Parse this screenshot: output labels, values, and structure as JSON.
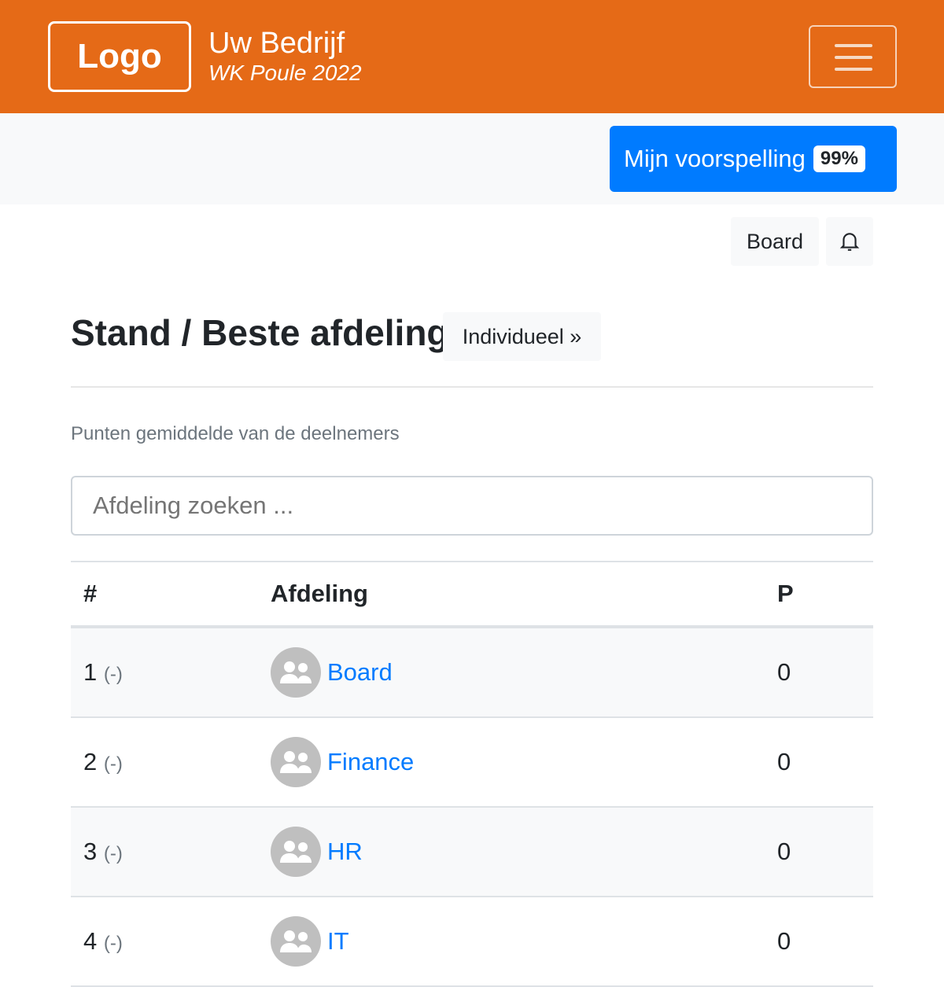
{
  "header": {
    "logo": "Logo",
    "company": "Uw Bedrijf",
    "subtitle": "WK Poule 2022",
    "accent": "#e56a17"
  },
  "prediction": {
    "label": "Mijn voorspelling",
    "badge": "99%",
    "color": "#007bff"
  },
  "toolbar": {
    "board": "Board",
    "bell_icon": "bell-icon"
  },
  "page": {
    "title": "Stand / Beste afdeling",
    "individual": "Individueel »",
    "description": "Punten gemiddelde van de deelnemers",
    "search_placeholder": "Afdeling zoeken ..."
  },
  "table": {
    "headers": [
      "#",
      "Afdeling",
      "P"
    ],
    "rows": [
      {
        "rank": "1",
        "move": "(-)",
        "name": "Board",
        "points": "0"
      },
      {
        "rank": "2",
        "move": "(-)",
        "name": "Finance",
        "points": "0"
      },
      {
        "rank": "3",
        "move": "(-)",
        "name": "HR",
        "points": "0"
      },
      {
        "rank": "4",
        "move": "(-)",
        "name": "IT",
        "points": "0"
      }
    ]
  }
}
